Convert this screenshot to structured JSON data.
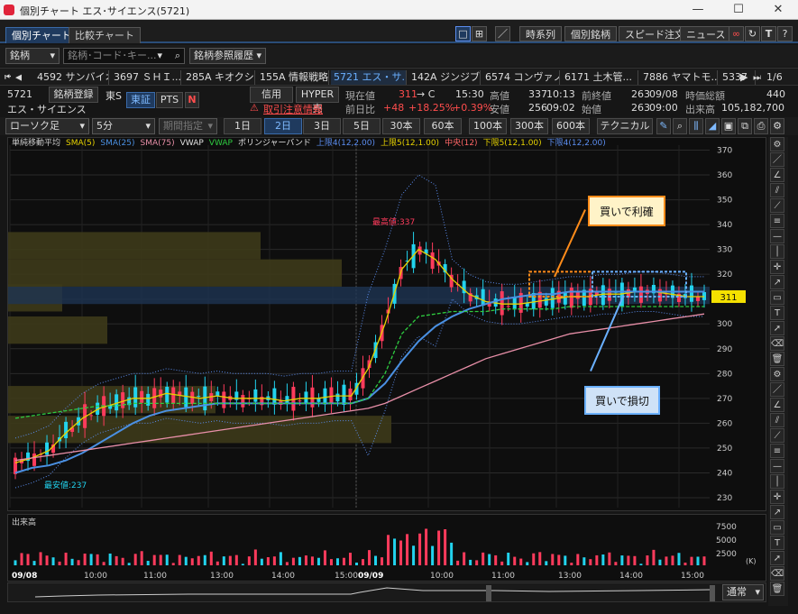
{
  "window": {
    "title": "個別チャート エス･サイエンス(5721)",
    "min": "—",
    "max": "☐",
    "close": "✕"
  },
  "tabs": [
    {
      "label": "個別チャート"
    },
    {
      "label": "比較チャート"
    }
  ],
  "toolbar_buttons": {
    "timeseries": "時系列",
    "individual": "個別銘柄",
    "speed": "スピード注文",
    "news": "ニュース"
  },
  "row2": {
    "brand_select": "銘柄",
    "search_placeholder": "銘柄･コード･キー...",
    "history_select": "銘柄参照履歴"
  },
  "stock_strip": {
    "items": [
      "4592 サンバイオ",
      "3697 ＳＨＩ...",
      "285A キオクシ...",
      "155A 情報戦略",
      "5721 エス・サ...",
      "142A ジンジブ",
      "6574 コンヴァノ",
      "6171 土木管...",
      "7886 ヤマトモ...",
      "5337"
    ],
    "page": "1/6"
  },
  "info": {
    "code": "5721",
    "register": "銘柄登録",
    "market_short": "東S",
    "exchange_tse": "東証",
    "exchange_pts": "PTS",
    "name": "エス・サイエンス",
    "credit": "信用",
    "hyper": "HYPER売",
    "caution": "取引注意情報",
    "current_label": "現在値",
    "current_value": "311",
    "current_flag": "→ C",
    "current_time": "15:30",
    "prev_label": "前日比",
    "prev_change": "+48",
    "prev_pct": "+18.25%",
    "prev_pct2": "+0.39%",
    "high_label": "高値",
    "high_value": "337",
    "high_time": "10:13",
    "low_label": "安値",
    "low_value": "256",
    "low_time": "09:02",
    "close_label": "前終値",
    "close_value": "263",
    "close_date": "09/08",
    "open_label": "始値",
    "open_value": "263",
    "open_time": "09:00",
    "mcap_label": "時価総額",
    "mcap_value": "440",
    "volume_label": "出来高",
    "volume_value": "105,182,700"
  },
  "row5": {
    "chart_type": "ローソク足",
    "interval": "5分",
    "period": "期間指定",
    "ranges": [
      "1日",
      "2日",
      "3日",
      "5日",
      "30本",
      "60本",
      "100本",
      "300本",
      "600本"
    ],
    "technical": "テクニカル"
  },
  "legend": {
    "title": "単純移動平均",
    "items": [
      {
        "label": "SMA(5)",
        "color": "#e6d200"
      },
      {
        "label": "SMA(25)",
        "color": "#4a90e2"
      },
      {
        "label": "SMA(75)",
        "color": "#e88fa8"
      },
      {
        "label": "VWAP",
        "color": "#e0e0e0"
      },
      {
        "label": "VWAP",
        "color": "#2ecc40"
      },
      {
        "label": "ボリンジャーバンド",
        "color": "#e0e0e0"
      },
      {
        "label": "上限4(12,2.00)",
        "color": "#5b8def"
      },
      {
        "label": "上限5(12,1.00)",
        "color": "#e6d200"
      },
      {
        "label": "中央(12)",
        "color": "#ff6666"
      },
      {
        "label": "下限5(12,1.00)",
        "color": "#e6d200"
      },
      {
        "label": "下限4(12,2.00)",
        "color": "#5b8def"
      }
    ]
  },
  "annotations": {
    "take_profit": "買いで利確",
    "stop_loss": "買いで損切",
    "high_mark": "最高値:337",
    "low_mark": "最安値:237",
    "price_tag": "311"
  },
  "volume": {
    "title": "出来高",
    "axis": [
      "7500",
      "5000",
      "2500"
    ],
    "unit": "(K)"
  },
  "nav": {
    "mode": "通常"
  },
  "chart_data": {
    "type": "line",
    "title": "",
    "y_ticks": [
      370,
      360,
      350,
      340,
      330,
      320,
      310,
      300,
      290,
      280,
      270,
      260,
      250,
      240,
      230
    ],
    "ylim": [
      226,
      372
    ],
    "x_ticks": [
      "09/08",
      "10:00",
      "11:00",
      "13:00",
      "14:00",
      "15:00",
      "09/09",
      "10:00",
      "11:00",
      "13:00",
      "14:00",
      "15:00"
    ],
    "series": [
      {
        "name": "SMA(5)",
        "color": "#e6d200",
        "values": [
          244,
          246,
          249,
          256,
          262,
          266,
          268,
          270,
          270,
          272,
          271,
          270,
          271,
          270,
          270,
          270,
          269,
          270,
          270,
          271,
          271,
          282,
          300,
          322,
          330,
          326,
          318,
          312,
          309,
          308,
          308,
          309,
          310,
          311,
          311,
          312,
          312,
          313,
          313,
          312,
          311,
          311
        ]
      },
      {
        "name": "SMA(25)",
        "color": "#4a90e2",
        "values": [
          240,
          242,
          243,
          245,
          248,
          252,
          256,
          260,
          263,
          265,
          266,
          267,
          268,
          268,
          268,
          268,
          268,
          268,
          268,
          268,
          268,
          270,
          276,
          285,
          293,
          299,
          303,
          306,
          308,
          310,
          311,
          312,
          312,
          313,
          313,
          313,
          313,
          313,
          313,
          313,
          313,
          313
        ]
      },
      {
        "name": "SMA(75)",
        "color": "#e88fa8",
        "values": [
          245,
          246,
          247,
          248,
          249,
          250,
          251,
          252,
          253,
          254,
          255,
          256,
          257,
          258,
          259,
          260,
          261,
          262,
          263,
          264,
          265,
          266,
          268,
          271,
          274,
          277,
          280,
          283,
          286,
          288,
          290,
          292,
          294,
          296,
          297,
          298,
          299,
          300,
          301,
          302,
          303,
          304
        ]
      },
      {
        "name": "VWAP",
        "color": "#2ecc40",
        "values": [
          262,
          263,
          264,
          265,
          266,
          267,
          267,
          268,
          268,
          268,
          268,
          268,
          268,
          268,
          268,
          268,
          268,
          268,
          268,
          268,
          268,
          270,
          280,
          296,
          303,
          304,
          305,
          305,
          305,
          306,
          306,
          306,
          306,
          307,
          307,
          307,
          307,
          307,
          307,
          307,
          307,
          307
        ]
      }
    ]
  }
}
